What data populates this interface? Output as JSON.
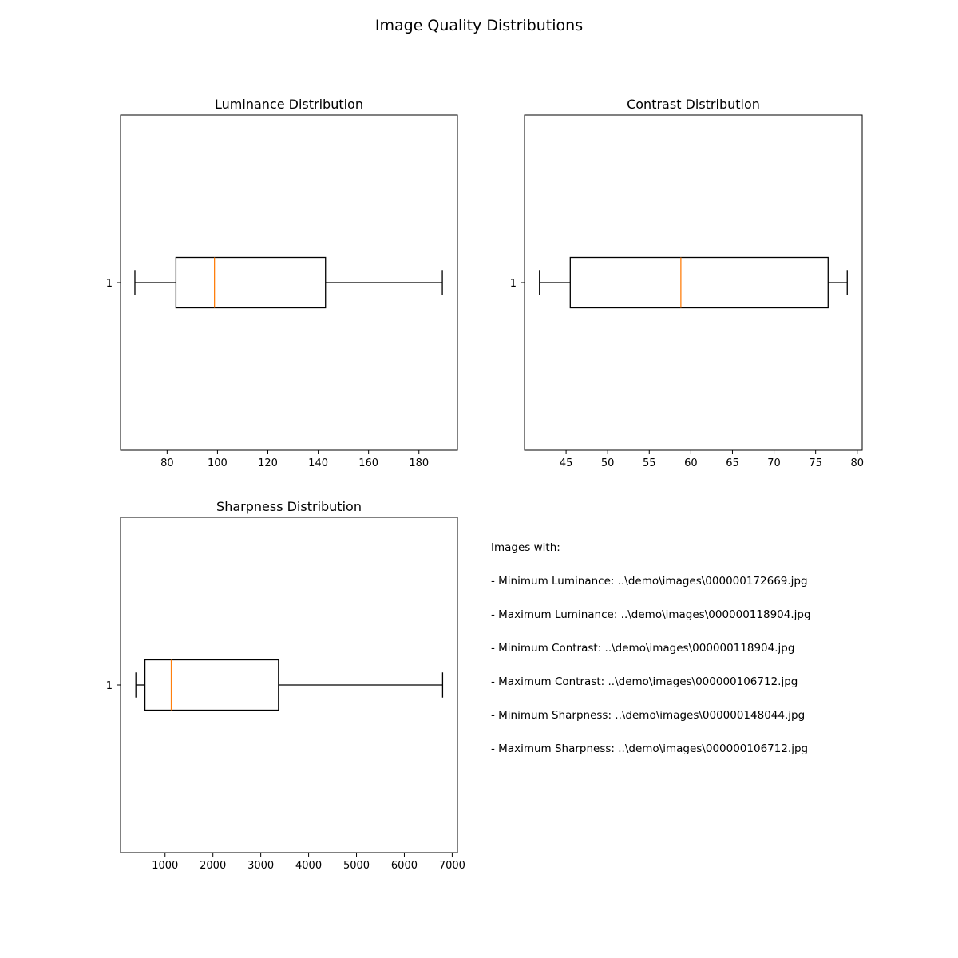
{
  "figure": {
    "title": "Image Quality Distributions"
  },
  "colors": {
    "box": "#000000",
    "median": "#ff7f0e",
    "background": "#ffffff"
  },
  "chart_data": [
    {
      "type": "boxplot",
      "orientation": "horizontal",
      "title": "Luminance Distribution",
      "xlabel": "",
      "ylabel": "",
      "xlim": [
        61.5,
        195.3
      ],
      "xticks": [
        80,
        100,
        120,
        140,
        160,
        180
      ],
      "yticks": [
        "1"
      ],
      "box": {
        "whisker_low": 67.2,
        "q1": 83.5,
        "median": 98.8,
        "q3": 142.9,
        "whisker_high": 189.3
      },
      "grid": false
    },
    {
      "type": "boxplot",
      "orientation": "horizontal",
      "title": "Contrast Distribution",
      "xlabel": "",
      "ylabel": "",
      "xlim": [
        40.0,
        80.6
      ],
      "xticks": [
        45,
        50,
        55,
        60,
        65,
        70,
        75,
        80
      ],
      "yticks": [
        "1"
      ],
      "box": {
        "whisker_low": 41.8,
        "q1": 45.5,
        "median": 58.8,
        "q3": 76.5,
        "whisker_high": 78.8
      },
      "grid": false
    },
    {
      "type": "boxplot",
      "orientation": "horizontal",
      "title": "Sharpness Distribution",
      "xlabel": "",
      "ylabel": "",
      "xlim": [
        70,
        7110
      ],
      "xticks": [
        1000,
        2000,
        3000,
        4000,
        5000,
        6000,
        7000
      ],
      "yticks": [
        "1"
      ],
      "box": {
        "whisker_low": 390,
        "q1": 580,
        "median": 1130,
        "q3": 3370,
        "whisker_high": 6800
      },
      "grid": false
    }
  ],
  "info": {
    "heading": "Images with:",
    "lines": [
      "- Minimum Luminance: ..\\demo\\images\\000000172669.jpg",
      "- Maximum Luminance: ..\\demo\\images\\000000118904.jpg",
      "- Minimum Contrast: ..\\demo\\images\\000000118904.jpg",
      "- Maximum Contrast: ..\\demo\\images\\000000106712.jpg",
      "- Minimum Sharpness: ..\\demo\\images\\000000148044.jpg",
      "- Maximum Sharpness: ..\\demo\\images\\000000106712.jpg"
    ]
  }
}
